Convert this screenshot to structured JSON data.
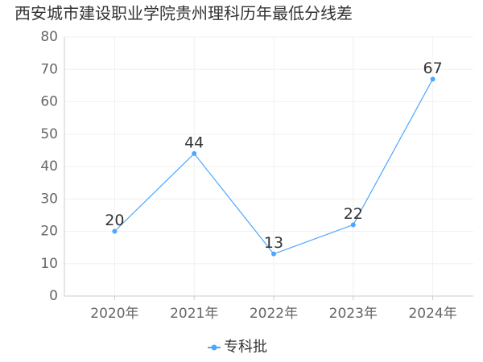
{
  "chart_data": {
    "type": "line",
    "title": "西安城市建设职业学院贵州理科历年最低分线差",
    "categories": [
      "2020年",
      "2021年",
      "2022年",
      "2023年",
      "2024年"
    ],
    "series": [
      {
        "name": "专科批",
        "color": "#4da6ff",
        "values": [
          20,
          44,
          13,
          22,
          67
        ]
      }
    ],
    "ylim": [
      0,
      80
    ],
    "yticks": [
      0,
      10,
      20,
      30,
      40,
      50,
      60,
      70,
      80
    ],
    "grid": true,
    "legend": "bottom"
  }
}
